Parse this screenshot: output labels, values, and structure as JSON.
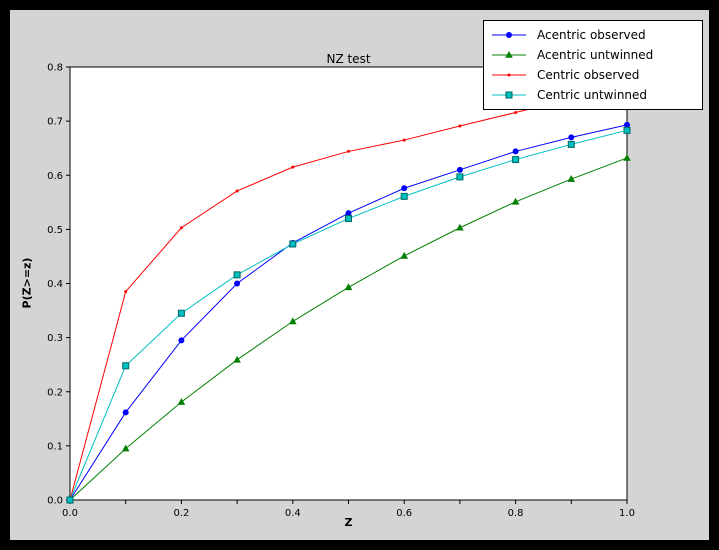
{
  "figure": {
    "outer_background": "#000000",
    "background": "#d4d4d4",
    "plot_background": "#ffffff"
  },
  "chart_data": {
    "type": "line",
    "title": "NZ test",
    "xlabel": "Z",
    "ylabel": "P(Z>=z)",
    "xlim": [
      0.0,
      1.0
    ],
    "ylim": [
      0.0,
      0.8
    ],
    "grid": false,
    "legend_position": "upper right",
    "x": [
      0.0,
      0.1,
      0.2,
      0.3,
      0.4,
      0.5,
      0.6,
      0.7,
      0.8,
      0.9,
      1.0
    ],
    "x_ticks": {
      "values": [
        0.0,
        0.1,
        0.2,
        0.3,
        0.4,
        0.5,
        0.6,
        0.7,
        0.8,
        0.9,
        1.0
      ],
      "labels": [
        "0.0",
        "",
        "0.2",
        "",
        "0.4",
        "",
        "0.6",
        "",
        "0.8",
        "",
        "1.0"
      ]
    },
    "y_ticks": {
      "values": [
        0.0,
        0.1,
        0.2,
        0.3,
        0.4,
        0.5,
        0.6,
        0.7,
        0.8
      ],
      "labels": [
        "0.0",
        "0.1",
        "0.2",
        "0.3",
        "0.4",
        "0.5",
        "0.6",
        "0.7",
        "0.8"
      ]
    },
    "series": [
      {
        "name": "Acentric observed",
        "color": "#0000ff",
        "marker": "circle",
        "values": [
          0.0,
          0.162,
          0.295,
          0.4,
          0.475,
          0.53,
          0.576,
          0.61,
          0.644,
          0.67,
          0.693
        ]
      },
      {
        "name": "Acentric untwinned",
        "color": "#008000",
        "marker": "triangle",
        "values": [
          0.0,
          0.095,
          0.181,
          0.259,
          0.33,
          0.393,
          0.451,
          0.503,
          0.551,
          0.593,
          0.632
        ]
      },
      {
        "name": "Centric observed",
        "color": "#ff0000",
        "marker": "dot",
        "values": [
          0.0,
          0.385,
          0.503,
          0.571,
          0.615,
          0.644,
          0.665,
          0.691,
          0.716,
          0.741,
          0.766
        ]
      },
      {
        "name": "Centric untwinned",
        "color": "#00bfbf",
        "marker": "square",
        "marker_edge": "#006666",
        "values": [
          0.0,
          0.248,
          0.345,
          0.416,
          0.473,
          0.52,
          0.561,
          0.597,
          0.629,
          0.657,
          0.683
        ]
      }
    ]
  }
}
